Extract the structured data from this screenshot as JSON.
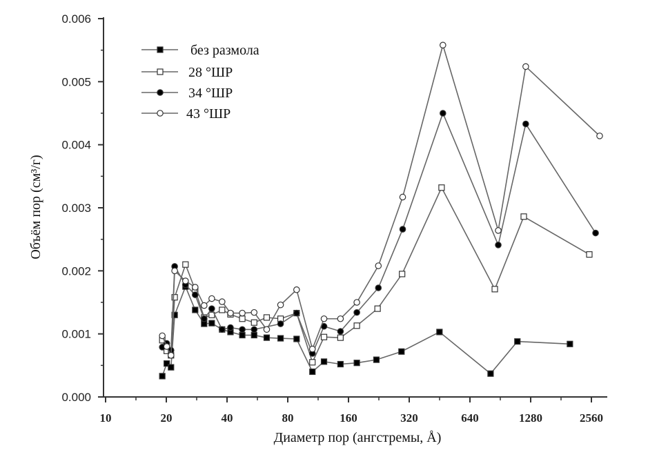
{
  "chart_data": {
    "type": "line",
    "title": "",
    "xlabel": "Диаметр пор (ангстремы, Å)",
    "ylabel": "Объём пор (см³/г)",
    "xscale": "log2",
    "xlim": [
      10,
      3000
    ],
    "ylim": [
      0,
      0.006
    ],
    "xticks": [
      10,
      20,
      40,
      80,
      160,
      320,
      640,
      1280,
      2560
    ],
    "xtick_labels": [
      "10",
      "20",
      "40",
      "80",
      "160",
      "320",
      "640",
      "1280",
      "2560"
    ],
    "yticks": [
      0,
      0.001,
      0.002,
      0.003,
      0.004,
      0.005,
      0.006
    ],
    "ytick_labels": [
      "0.000",
      "0.001",
      "0.002",
      "0.003",
      "0.004",
      "0.005",
      "0.006"
    ],
    "grid": false,
    "legend_position": "top-left",
    "series": [
      {
        "name": "без размола",
        "marker": "filled-square",
        "x": [
          19.1,
          20.1,
          21.1,
          22.0,
          24.9,
          27.8,
          30.8,
          33.6,
          37.8,
          41.6,
          47.6,
          54.5,
          62.9,
          73.7,
          88.5,
          106,
          121,
          146,
          176,
          220,
          293,
          452,
          810,
          1100,
          2003
        ],
        "y": [
          0.00033,
          0.00053,
          0.00047,
          0.0013,
          0.00175,
          0.00138,
          0.00116,
          0.00117,
          0.00107,
          0.00103,
          0.00098,
          0.00098,
          0.00094,
          0.00093,
          0.00092,
          0.0004,
          0.00056,
          0.00052,
          0.00054,
          0.00059,
          0.00072,
          0.00103,
          0.00037,
          0.00088,
          0.00084
        ]
      },
      {
        "name": "28 °ШР",
        "marker": "open-square",
        "x": [
          19.1,
          20.1,
          21.1,
          22.0,
          24.9,
          27.8,
          30.8,
          33.6,
          37.8,
          41.6,
          47.6,
          54.5,
          62.9,
          73.7,
          88.5,
          106,
          121,
          146,
          176,
          223,
          295,
          463,
          850,
          1183,
          2500
        ],
        "y": [
          0.0009,
          0.00073,
          0.00066,
          0.00158,
          0.0021,
          0.0017,
          0.00126,
          0.0013,
          0.00138,
          0.00131,
          0.00124,
          0.00118,
          0.00126,
          0.00124,
          0.00133,
          0.00055,
          0.00095,
          0.00094,
          0.00113,
          0.0014,
          0.00195,
          0.00332,
          0.00171,
          0.00286,
          0.00226
        ]
      },
      {
        "name": "34 °ШР",
        "marker": "filled-circle",
        "x": [
          19.1,
          20.1,
          21.1,
          22.0,
          24.9,
          27.8,
          30.8,
          33.6,
          37.8,
          41.6,
          47.6,
          54.5,
          73.7,
          88.5,
          106,
          121,
          146,
          176,
          225,
          297,
          470,
          884,
          1210,
          2685
        ],
        "y": [
          0.00079,
          0.00085,
          0.00074,
          0.00207,
          0.00178,
          0.00162,
          0.00124,
          0.0014,
          0.00107,
          0.0011,
          0.00107,
          0.00107,
          0.00116,
          0.00133,
          0.00069,
          0.00112,
          0.00104,
          0.00134,
          0.00173,
          0.00266,
          0.0045,
          0.00241,
          0.00433,
          0.0026
        ]
      },
      {
        "name": "43 °ШР",
        "marker": "open-circle",
        "x": [
          19.1,
          20.1,
          21.1,
          22.0,
          24.9,
          27.8,
          30.8,
          33.6,
          37.8,
          41.6,
          47.6,
          54.5,
          62.9,
          73.7,
          88.5,
          106,
          121,
          146,
          176,
          225,
          297,
          470,
          884,
          1210,
          2813
        ],
        "y": [
          0.00097,
          0.0008,
          0.00066,
          0.002,
          0.00184,
          0.00174,
          0.00145,
          0.00156,
          0.00151,
          0.00133,
          0.00133,
          0.00134,
          0.00107,
          0.00146,
          0.0017,
          0.00076,
          0.00124,
          0.00124,
          0.0015,
          0.00208,
          0.00317,
          0.00558,
          0.00264,
          0.00524,
          0.00414
        ]
      }
    ]
  }
}
